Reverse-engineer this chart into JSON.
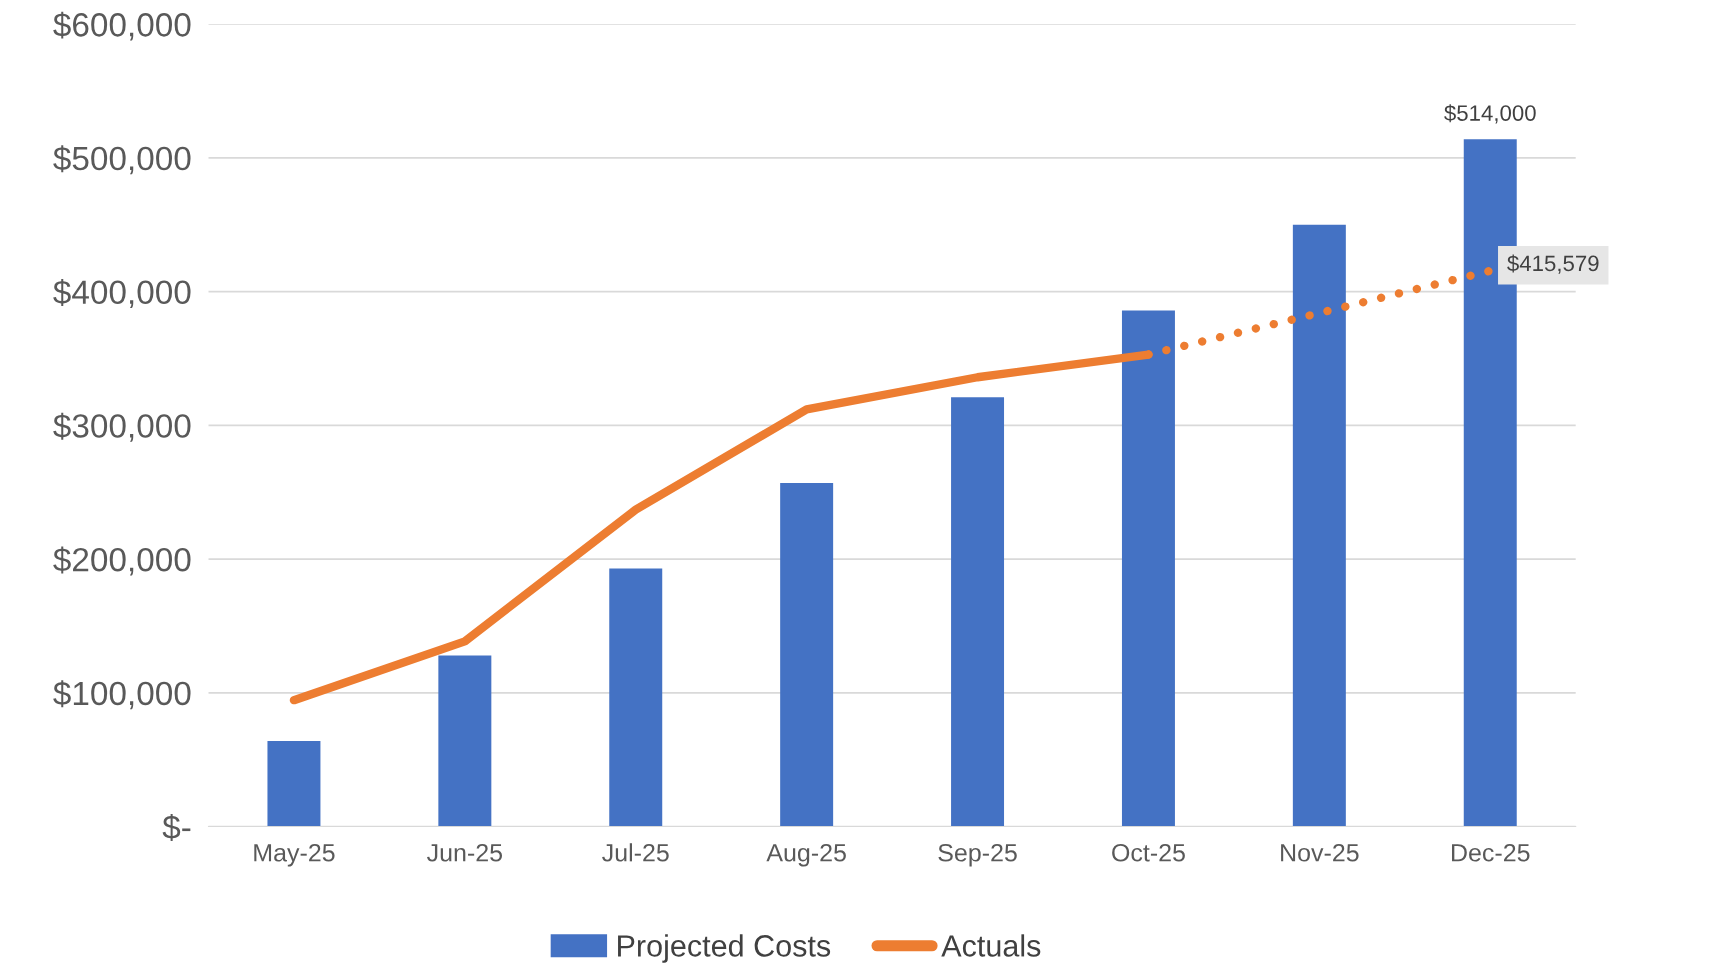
{
  "chart_data": {
    "type": "bar",
    "categories": [
      "May-25",
      "Jun-25",
      "Jul-25",
      "Aug-25",
      "Sep-25",
      "Oct-25",
      "Nov-25",
      "Dec-25"
    ],
    "series": [
      {
        "name": "Projected Costs",
        "color": "#4472c4",
        "values": [
          64000,
          128000,
          193000,
          257000,
          321000,
          386000,
          450000,
          514000
        ],
        "value_labels": [
          null,
          null,
          null,
          null,
          null,
          null,
          null,
          "$514,000"
        ]
      },
      {
        "name": "Actuals",
        "type": "line",
        "color": "#ed7d31",
        "line_style": "solid",
        "values": [
          94500,
          138500,
          237000,
          312000,
          336000,
          353000,
          null,
          null
        ]
      },
      {
        "type": "line",
        "color": "#ed7d31",
        "line_style": "dotted",
        "values": [
          null,
          null,
          null,
          null,
          null,
          353000,
          384000,
          415579
        ],
        "value_labels": [
          null,
          null,
          null,
          null,
          null,
          null,
          null,
          "$415,579"
        ]
      }
    ],
    "ylim": [
      0,
      600000
    ],
    "yticks": [
      {
        "value": 0,
        "label": "$-"
      },
      {
        "value": 100000,
        "label": "$100,000"
      },
      {
        "value": 200000,
        "label": "$200,000"
      },
      {
        "value": 300000,
        "label": "$300,000"
      },
      {
        "value": 400000,
        "label": "$400,000"
      },
      {
        "value": 500000,
        "label": "$500,000"
      },
      {
        "value": 600000,
        "label": "$600,000"
      }
    ],
    "grid": "y",
    "legend": "bottom"
  }
}
